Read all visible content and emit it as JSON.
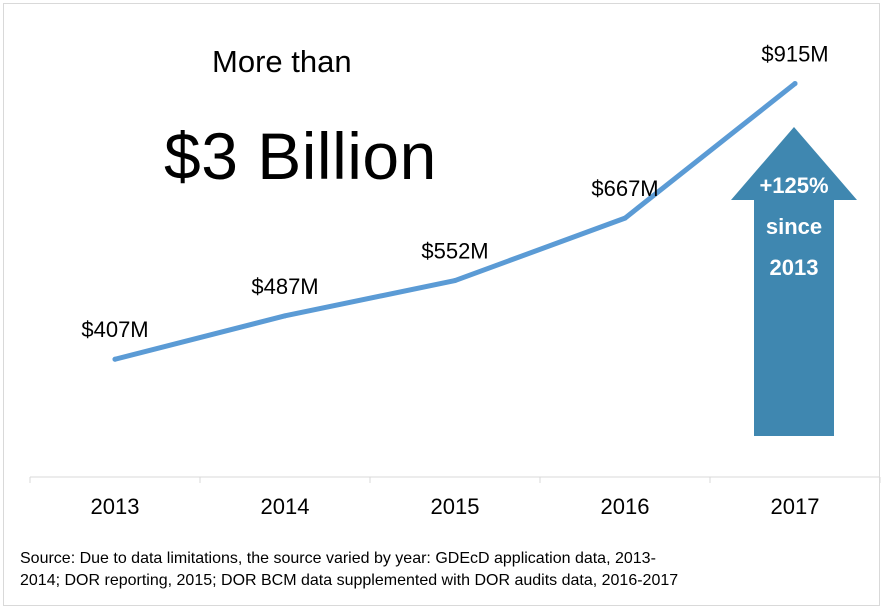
{
  "headline": {
    "line1": "More than",
    "line2": "$3 Billion"
  },
  "callout": {
    "lines": [
      "+125%",
      "since",
      "2013"
    ],
    "color": "#3f87b0"
  },
  "source_note": [
    "Source: Due to data limitations, the source varied by year: GDEcD application data, 2013-",
    "2014; DOR reporting, 2015; DOR BCM data supplemented with DOR audits data, 2016-2017"
  ],
  "chart_data": {
    "type": "line",
    "categories": [
      "2013",
      "2014",
      "2015",
      "2016",
      "2017"
    ],
    "series": [
      {
        "values": [
          407,
          487,
          552,
          667,
          915
        ],
        "labels": [
          "$407M",
          "$487M",
          "$552M",
          "$667M",
          "$915M"
        ],
        "color": "#5b9bd5"
      }
    ],
    "ylim": [
      190,
      940
    ],
    "unit": "$M",
    "grid": false,
    "legend": "none"
  }
}
